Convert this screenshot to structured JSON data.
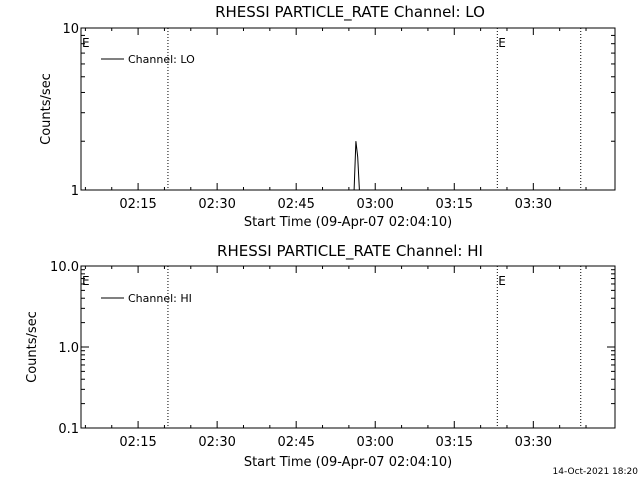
{
  "chart_data": [
    {
      "type": "line",
      "title": "RHESSI PARTICLE_RATE Channel: LO",
      "xlabel": "Start Time (09-Apr-07 02:04:10)",
      "ylabel": "Counts/sec",
      "yscale": "log",
      "ylim": [
        1,
        10
      ],
      "yticks": [
        1,
        10
      ],
      "ytick_labels": [
        "1",
        "10"
      ],
      "xlim": [
        "02:04:10",
        "03:45:30"
      ],
      "xticks": [
        "02:15",
        "02:30",
        "02:45",
        "03:00",
        "03:15",
        "03:30"
      ],
      "vlines": [
        "02:20:40",
        "03:23:10",
        "03:39:00"
      ],
      "flags": [
        {
          "label": "E",
          "time": "02:04:10"
        },
        {
          "label": "E",
          "time": "03:23:10"
        }
      ],
      "legend": {
        "position": "top-left",
        "label": "Channel: LO"
      },
      "series": [
        {
          "name": "Channel: LO",
          "x": [
            "02:56:00",
            "02:56:20",
            "02:56:40",
            "02:57:00"
          ],
          "y": [
            1.0,
            2.0,
            1.6,
            1.0
          ]
        }
      ]
    },
    {
      "type": "line",
      "title": "RHESSI PARTICLE_RATE Channel: HI",
      "xlabel": "Start Time (09-Apr-07 02:04:10)",
      "ylabel": "Counts/sec",
      "yscale": "log",
      "ylim": [
        0.1,
        10
      ],
      "yticks": [
        0.1,
        1,
        10
      ],
      "ytick_labels": [
        "0.1",
        "1.0",
        "10.0"
      ],
      "xlim": [
        "02:04:10",
        "03:45:30"
      ],
      "xticks": [
        "02:15",
        "02:30",
        "02:45",
        "03:00",
        "03:15",
        "03:30"
      ],
      "vlines": [
        "02:20:40",
        "03:23:10",
        "03:39:00"
      ],
      "flags": [
        {
          "label": "E",
          "time": "02:04:10"
        },
        {
          "label": "E",
          "time": "03:23:10"
        }
      ],
      "legend": {
        "position": "top-left",
        "label": "Channel: HI"
      },
      "series": [
        {
          "name": "Channel: HI",
          "x": [],
          "y": []
        }
      ]
    }
  ],
  "footer": {
    "timestamp": "14-Oct-2021 18:20"
  }
}
